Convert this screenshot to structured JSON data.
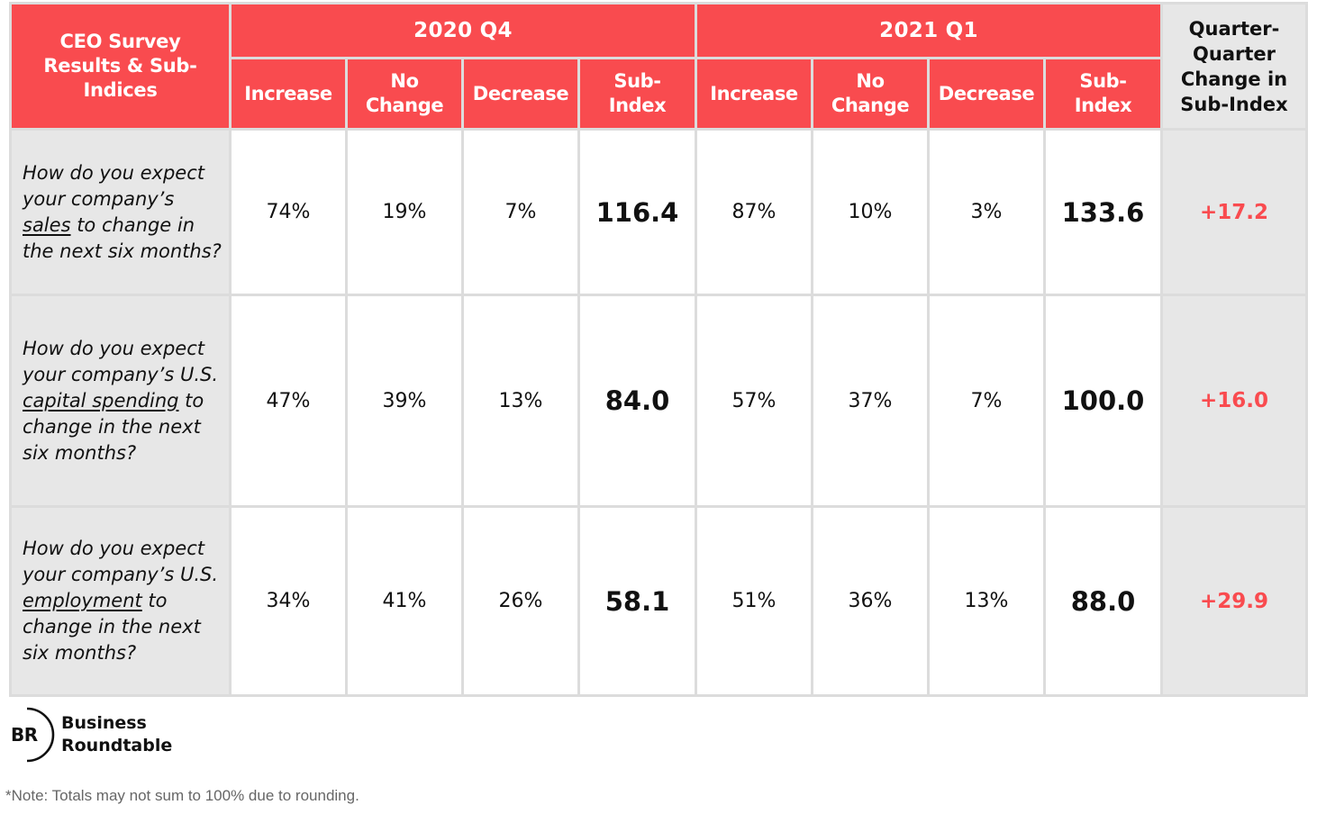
{
  "table": {
    "corner_title": "CEO Survey Results & Sub-Indices",
    "periods": [
      "2020 Q4",
      "2021 Q1"
    ],
    "column_labels": {
      "increase": "Increase",
      "no_change": "No Change",
      "decrease": "Decrease",
      "sub_index": "Sub-Index"
    },
    "change_header": "Quarter-Quarter Change in Sub-Index",
    "rows": [
      {
        "q_pre": "How do you expect your company’s ",
        "q_key": "sales",
        "q_post": " to change in the next six months?",
        "q4": {
          "increase": "74%",
          "no_change": "19%",
          "decrease": "7%",
          "sub_index": "116.4"
        },
        "q1": {
          "increase": "87%",
          "no_change": "10%",
          "decrease": "3%",
          "sub_index": "133.6"
        },
        "change": "+17.2"
      },
      {
        "q_pre": "How do you expect your company’s U.S. ",
        "q_key": "capital spending",
        "q_post": " to change in the next six months?",
        "q4": {
          "increase": "47%",
          "no_change": "39%",
          "decrease": "13%",
          "sub_index": "84.0"
        },
        "q1": {
          "increase": "57%",
          "no_change": "37%",
          "decrease": "7%",
          "sub_index": "100.0"
        },
        "change": "+16.0"
      },
      {
        "q_pre": "How do you expect your company’s U.S. ",
        "q_key": "employment",
        "q_post": " to change in the next six months?",
        "q4": {
          "increase": "34%",
          "no_change": "41%",
          "decrease": "26%",
          "sub_index": "58.1"
        },
        "q1": {
          "increase": "51%",
          "no_change": "36%",
          "decrease": "13%",
          "sub_index": "88.0"
        },
        "change": "+29.9"
      }
    ]
  },
  "logo": {
    "initials": "BR",
    "line1": "Business",
    "line2": "Roundtable"
  },
  "note": "*Note: Totals may not sum to 100% due to rounding.",
  "colors": {
    "accent": "#f94b4f",
    "label_bg": "#e7e7e7",
    "grid": "#dcdcdc"
  }
}
